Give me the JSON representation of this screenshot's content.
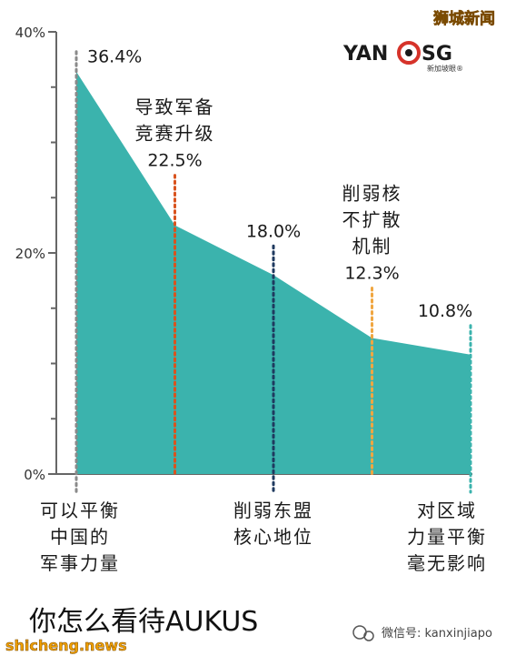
{
  "watermark_top": "狮城新闻",
  "logo": {
    "text": "YAN",
    "text2": "SG",
    "sub": "新加坡眼®"
  },
  "title": "你怎么看待AUKUS",
  "watermark_bottom_left": "shicheng.news",
  "watermark_bottom_right": "微信号: kanxinjiapo",
  "colors": {
    "area": "#3bb3ad",
    "axis": "#666666",
    "title": "#111111",
    "watermark": "#f0a000"
  },
  "chart_data": {
    "type": "area",
    "y_ticks": [
      "40%",
      "20%",
      "0%"
    ],
    "ylim": [
      0,
      40
    ],
    "values": [
      36.4,
      22.5,
      18.0,
      12.3,
      10.8
    ],
    "value_labels": [
      "36.4%",
      "22.5%",
      "18.0%",
      "12.3%",
      "10.8%"
    ],
    "categories": [
      [
        "可以平衡",
        "中国的",
        "军事力量"
      ],
      [
        "导致军备",
        "竞赛升级"
      ],
      [
        "削弱东盟",
        "核心地位"
      ],
      [
        "削弱核",
        "不扩散",
        "机制"
      ],
      [
        "对区域",
        "力量平衡",
        "毫无影响"
      ]
    ],
    "category_positions": [
      "bottom",
      "top",
      "bottom",
      "top",
      "bottom"
    ],
    "marker_colors": [
      "#8a8a8a",
      "#d9531e",
      "#1f3a5f",
      "#f0a640",
      "#3bb3ad"
    ]
  }
}
